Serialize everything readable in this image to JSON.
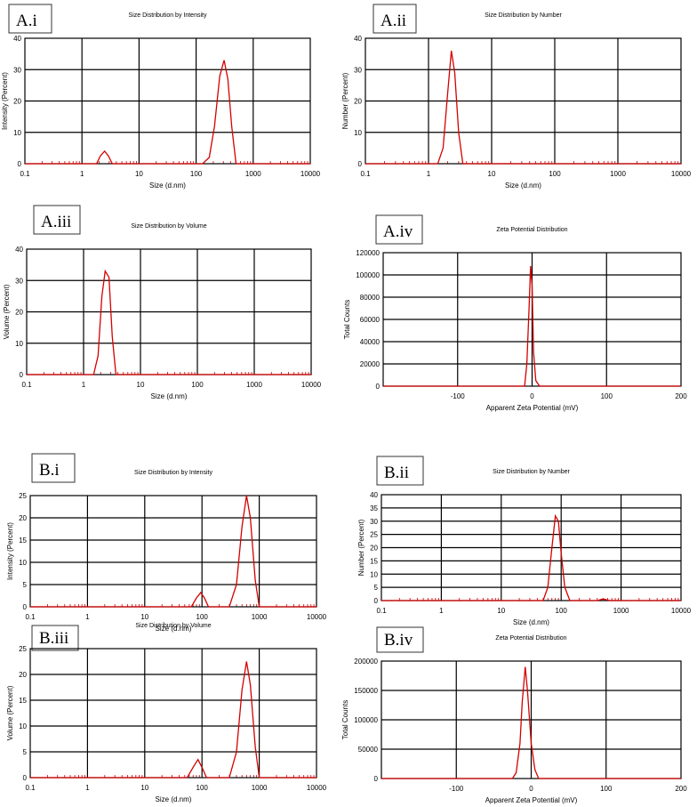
{
  "chart_data": [
    {
      "panel_label": "A.i",
      "type": "line",
      "title": "Size Distribution by Intensity",
      "xlabel": "Size (d.nm)",
      "ylabel": "Intensity (Percent)",
      "xscale": "log",
      "xlim": [
        0.1,
        10000
      ],
      "ylim": [
        0,
        40
      ],
      "xticks": [
        "0.1",
        "1",
        "10",
        "100",
        "1000",
        "10000"
      ],
      "yticks": [
        "0",
        "10",
        "20",
        "30",
        "40"
      ],
      "grid": true,
      "series": [
        {
          "color": "#d40000",
          "x": [
            0.1,
            1.8,
            2.1,
            2.5,
            2.9,
            3.4,
            130,
            170,
            210,
            260,
            310,
            360,
            420,
            500,
            10000
          ],
          "y": [
            0,
            0,
            2.5,
            4,
            2.5,
            0,
            0,
            2,
            12,
            28,
            33,
            27,
            12,
            0,
            0
          ]
        }
      ]
    },
    {
      "panel_label": "A.ii",
      "type": "line",
      "title": "Size Distribution by Number",
      "xlabel": "Size (d.nm)",
      "ylabel": "Number (Percent)",
      "xscale": "log",
      "xlim": [
        0.1,
        10000
      ],
      "ylim": [
        0,
        40
      ],
      "xticks": [
        "0.1",
        "1",
        "10",
        "100",
        "1000",
        "10000"
      ],
      "yticks": [
        "0",
        "10",
        "20",
        "30",
        "40"
      ],
      "grid": true,
      "series": [
        {
          "color": "#d40000",
          "x": [
            0.1,
            1.4,
            1.7,
            2.0,
            2.3,
            2.6,
            3.0,
            3.5,
            10000
          ],
          "y": [
            0,
            0,
            5,
            22,
            36,
            29,
            10,
            0,
            0
          ]
        }
      ]
    },
    {
      "panel_label": "A.iii",
      "type": "line",
      "title": "Size Distribution by Volume",
      "xlabel": "Size (d.nm)",
      "ylabel": "Volume (Percent)",
      "xscale": "log",
      "xlim": [
        0.1,
        10000
      ],
      "ylim": [
        0,
        40
      ],
      "xticks": [
        "0.1",
        "1",
        "10",
        "100",
        "1000",
        "10000"
      ],
      "yticks": [
        "0",
        "10",
        "20",
        "30",
        "40"
      ],
      "grid": true,
      "series": [
        {
          "color": "#d40000",
          "x": [
            0.1,
            1.5,
            1.8,
            2.1,
            2.4,
            2.8,
            3.2,
            3.7,
            10000
          ],
          "y": [
            0,
            0,
            6,
            25,
            33,
            31,
            12,
            0,
            0
          ]
        }
      ]
    },
    {
      "panel_label": "A.iv",
      "type": "line",
      "title": "Zeta Potential Distribution",
      "xlabel": "Apparent Zeta Potential (mV)",
      "ylabel": "Total Counts",
      "xscale": "linear",
      "xlim": [
        -200,
        200
      ],
      "ylim": [
        0,
        120000
      ],
      "xticks": [
        "-100",
        "0",
        "100",
        "200"
      ],
      "yticks": [
        "0",
        "20000",
        "40000",
        "60000",
        "80000",
        "100000",
        "120000"
      ],
      "grid": true,
      "series": [
        {
          "color": "#d40000",
          "x": [
            -200,
            -10,
            -7,
            -4,
            -2,
            0,
            2,
            5,
            10,
            200
          ],
          "y": [
            0,
            0,
            20000,
            70000,
            108000,
            90000,
            30000,
            5000,
            0,
            0
          ]
        }
      ]
    },
    {
      "panel_label": "B.i",
      "type": "line",
      "title": "Size Distribution by Intensity",
      "xlabel": "Size (d.nm)",
      "ylabel": "Intensity (Percent)",
      "xscale": "log",
      "xlim": [
        0.1,
        10000
      ],
      "ylim": [
        0,
        25
      ],
      "xticks": [
        "0.1",
        "1",
        "10",
        "100",
        "1000",
        "10000"
      ],
      "yticks": [
        "0",
        "5",
        "10",
        "15",
        "20",
        "25"
      ],
      "grid": true,
      "series": [
        {
          "color": "#d40000",
          "x": [
            0.1,
            65,
            80,
            95,
            110,
            130,
            300,
            400,
            500,
            600,
            700,
            850,
            1000,
            10000
          ],
          "y": [
            0,
            0,
            2,
            3.2,
            2,
            0,
            0,
            5,
            18,
            25,
            20,
            6,
            0,
            0
          ]
        }
      ]
    },
    {
      "panel_label": "B.ii",
      "type": "line",
      "title": "Size Distribution by Number",
      "xlabel": "Size (d.nm)",
      "ylabel": "Number (Percent)",
      "xscale": "log",
      "xlim": [
        0.1,
        10000
      ],
      "ylim": [
        0,
        40
      ],
      "xticks": [
        "0.1",
        "1",
        "10",
        "100",
        "1000",
        "10000"
      ],
      "yticks": [
        "0",
        "5",
        "10",
        "15",
        "20",
        "25",
        "30",
        "35",
        "40"
      ],
      "grid": true,
      "series": [
        {
          "color": "#d40000",
          "x": [
            0.1,
            50,
            60,
            70,
            80,
            90,
            100,
            115,
            140,
            400,
            500,
            650,
            10000
          ],
          "y": [
            0,
            0,
            5,
            20,
            32,
            30,
            18,
            5,
            0,
            0,
            0.6,
            0,
            0
          ]
        }
      ]
    },
    {
      "panel_label": "B.iii",
      "type": "line",
      "title": "Size Distribution by Volume",
      "xlabel": "Size (d.nm)",
      "ylabel": "Volume (Percent)",
      "xscale": "log",
      "xlim": [
        0.1,
        10000
      ],
      "ylim": [
        0,
        25
      ],
      "xticks": [
        "0.1",
        "1",
        "10",
        "100",
        "1000",
        "10000"
      ],
      "yticks": [
        "0",
        "5",
        "10",
        "15",
        "20",
        "25"
      ],
      "grid": true,
      "series": [
        {
          "color": "#d40000",
          "x": [
            0.1,
            55,
            70,
            85,
            100,
            120,
            300,
            400,
            500,
            600,
            700,
            850,
            1000,
            10000
          ],
          "y": [
            0,
            0,
            2,
            3.5,
            2,
            0,
            0,
            5,
            17,
            22.5,
            18,
            6,
            0,
            0
          ]
        }
      ]
    },
    {
      "panel_label": "B.iv",
      "type": "line",
      "title": "Zeta Potential Distribution",
      "xlabel": "Apparent Zeta Potential (mV)",
      "ylabel": "Total Counts",
      "xscale": "linear",
      "xlim": [
        -200,
        200
      ],
      "ylim": [
        0,
        200000
      ],
      "xticks": [
        "-100",
        "0",
        "100",
        "200"
      ],
      "yticks": [
        "0",
        "50000",
        "100000",
        "150000",
        "200000"
      ],
      "grid": true,
      "series": [
        {
          "color": "#d40000",
          "x": [
            -200,
            -25,
            -20,
            -15,
            -12,
            -8,
            -5,
            0,
            5,
            10,
            200
          ],
          "y": [
            0,
            0,
            10000,
            60000,
            130000,
            190000,
            150000,
            60000,
            15000,
            0,
            0
          ]
        }
      ]
    }
  ]
}
